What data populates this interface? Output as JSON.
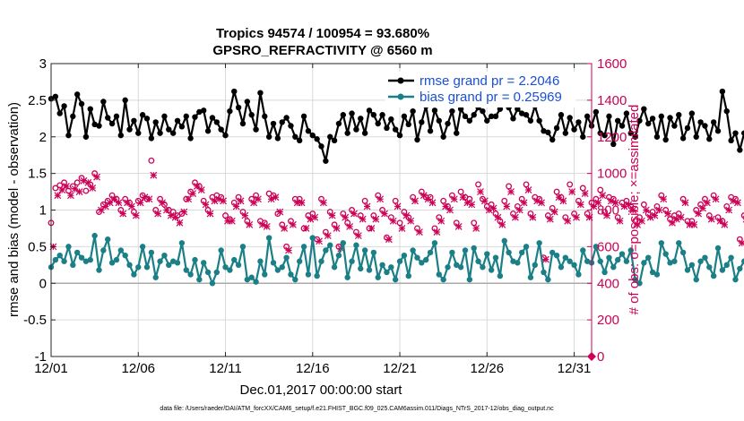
{
  "chart_data": {
    "type": "line",
    "title": "Tropics 94574 / 100954 = 93.680%",
    "subtitle": "GPSRO_REFRACTIVITY @ 6560 m",
    "xlabel": "Dec.01,2017 00:00:00 start",
    "ylabel": "rmse and bias (model - observation)",
    "y2label": "# of obs: o=possible; ×=assimilated",
    "footnote": "data file: /Users/raeder/DAI/ATM_forcXX/CAM6_setup/f.e21.FHIST_BGC.f09_025.CAM6assim.011/Diags_NTrS_2017-12/obs_diag_output.nc",
    "xlim": [
      0,
      31
    ],
    "ylim": [
      -1,
      3
    ],
    "y2lim": [
      0,
      1600
    ],
    "x_ticks": [
      0,
      5,
      10,
      15,
      20,
      25,
      30
    ],
    "x_tick_labels": [
      "12/01",
      "12/06",
      "12/11",
      "12/16",
      "12/21",
      "12/26",
      "12/31"
    ],
    "y_ticks": [
      -1,
      -0.5,
      0,
      0.5,
      1,
      1.5,
      2,
      2.5,
      3
    ],
    "y_tick_labels": [
      "-1",
      "-0.5",
      "0",
      "0.5",
      "1",
      "1.5",
      "2",
      "2.5",
      "3"
    ],
    "y2_ticks": [
      0,
      200,
      400,
      600,
      800,
      1000,
      1200,
      1400,
      1600
    ],
    "y2_tick_labels": [
      "0",
      "200",
      "400",
      "600",
      "800",
      "1000",
      "1200",
      "1400",
      "1600"
    ],
    "grid": true,
    "legend_position": "top-right",
    "colors": {
      "rmse": "#000000",
      "bias": "#1a7f86",
      "obs": "#cc0055",
      "legend_text": "#1a4fd6",
      "grid": "#d9d9d9",
      "zero_line": "#aaaaaa"
    },
    "series": [
      {
        "name": "rmse grand pr = 2.2046",
        "axis": "left",
        "x_start": 0,
        "x_step": 0.25,
        "values": [
          2.52,
          2.55,
          2.32,
          2.42,
          2.02,
          2.28,
          2.58,
          2.45,
          2.0,
          2.38,
          2.17,
          2.15,
          2.48,
          2.26,
          2.18,
          2.28,
          2.02,
          2.5,
          2.1,
          2.22,
          2.05,
          2.3,
          2.25,
          1.98,
          2.2,
          2.05,
          2.28,
          2.1,
          2.05,
          2.22,
          2.14,
          2.28,
          1.98,
          2.27,
          2.34,
          2.36,
          2.08,
          2.26,
          2.2,
          2.1,
          2.02,
          2.35,
          2.62,
          2.4,
          2.18,
          2.48,
          2.3,
          2.1,
          2.6,
          2.28,
          2.0,
          2.18,
          1.98,
          2.2,
          2.26,
          2.15,
          2.0,
          1.95,
          2.28,
          2.08,
          2.02,
          1.97,
          1.87,
          1.67,
          2.0,
          1.95,
          2.18,
          2.3,
          2.05,
          2.32,
          2.1,
          2.25,
          2.05,
          2.36,
          2.3,
          2.18,
          2.3,
          2.12,
          2.24,
          2.1,
          2.02,
          2.28,
          2.17,
          2.35,
          1.96,
          2.2,
          2.42,
          2.08,
          2.36,
          2.22,
          2.0,
          2.18,
          2.35,
          2.05,
          2.38,
          2.28,
          2.22,
          2.3,
          2.4,
          2.35,
          2.22,
          2.28,
          2.28,
          2.38,
          2.62,
          2.4,
          2.25,
          2.38,
          2.32,
          2.3,
          2.22,
          2.42,
          2.22,
          2.08,
          2.06,
          1.96,
          2.12,
          2.3,
          2.05,
          2.26,
          2.1,
          2.2,
          2.0,
          2.28,
          2.15,
          2.34,
          2.05,
          2.02,
          2.28,
          1.9,
          2.22,
          2.15,
          2.32,
          2.05,
          2.0,
          2.22,
          2.38,
          2.18,
          2.25,
          2.0,
          2.28,
          1.96,
          2.26,
          2.15,
          2.3,
          1.98,
          2.12,
          2.32,
          2.0,
          2.2,
          2.15,
          1.97,
          2.2,
          2.08,
          2.62,
          2.35,
          1.95,
          2.05,
          1.82,
          2.05,
          2.12,
          2.22
        ]
      },
      {
        "name": "bias grand pr = 0.25969",
        "axis": "left",
        "x_start": 0,
        "x_step": 0.25,
        "values": [
          0.22,
          0.32,
          0.38,
          0.3,
          0.5,
          0.25,
          0.42,
          0.35,
          0.3,
          0.32,
          0.65,
          0.18,
          0.45,
          0.6,
          0.28,
          0.32,
          0.45,
          0.38,
          0.25,
          0.12,
          0.22,
          0.5,
          0.22,
          0.42,
          0.08,
          0.3,
          0.38,
          0.25,
          0.3,
          0.28,
          0.55,
          0.18,
          0.12,
          0.32,
          0.05,
          0.28,
          0.15,
          0.0,
          0.15,
          0.45,
          0.22,
          0.18,
          0.32,
          0.25,
          0.5,
          0.05,
          0.08,
          0.02,
          0.3,
          0.12,
          0.62,
          0.28,
          0.18,
          0.22,
          0.35,
          0.12,
          0.05,
          0.3,
          0.5,
          0.12,
          0.62,
          0.1,
          0.3,
          0.45,
          0.52,
          0.22,
          0.38,
          0.55,
          0.08,
          0.3,
          0.52,
          0.2,
          0.45,
          0.18,
          0.42,
          0.08,
          0.25,
          0.15,
          0.22,
          0.05,
          0.3,
          0.38,
          0.1,
          0.45,
          0.35,
          0.28,
          0.32,
          0.42,
          0.55,
          0.12,
          0.05,
          0.22,
          0.42,
          0.25,
          0.22,
          0.45,
          0.05,
          0.48,
          0.3,
          0.22,
          0.4,
          0.18,
          0.35,
          0.1,
          0.58,
          0.42,
          0.3,
          0.28,
          0.42,
          0.5,
          0.08,
          0.25,
          0.55,
          0.15,
          0.05,
          0.42,
          0.38,
          0.22,
          0.35,
          0.3,
          0.25,
          0.12,
          0.45,
          0.3,
          0.28,
          0.5,
          0.3,
          0.15,
          0.35,
          0.22,
          0.32,
          0.4,
          0.3,
          0.45,
          0.05,
          0.0,
          0.28,
          0.35,
          0.15,
          0.12,
          0.55,
          0.4,
          0.28,
          0.3,
          0.55,
          0.42,
          0.18,
          0.25,
          0.05,
          0.3,
          0.35,
          0.22,
          0.1,
          0.48,
          0.18,
          0.25,
          0.35,
          0.05,
          0.2,
          0.3,
          0.38,
          0.15,
          0.32
        ]
      },
      {
        "name": "possible obs",
        "axis": "right",
        "marker": "o",
        "x_start": 0,
        "x_step": 0.25,
        "values": [
          730,
          920,
          935,
          950,
          905,
          930,
          950,
          975,
          905,
          940,
          1000,
          790,
          830,
          850,
          880,
          860,
          800,
          860,
          840,
          790,
          850,
          880,
          860,
          1070,
          800,
          860,
          830,
          800,
          790,
          770,
          780,
          860,
          900,
          950,
          930,
          850,
          800,
          870,
          880,
          870,
          770,
          750,
          840,
          870,
          790,
          740,
          860,
          880,
          740,
          730,
          890,
          880,
          780,
          720,
          600,
          740,
          860,
          860,
          700,
          770,
          780,
          640,
          860,
          680,
          790,
          720,
          600,
          780,
          730,
          800,
          680,
          770,
          850,
          700,
          770,
          880,
          800,
          650,
          760,
          850,
          730,
          790,
          760,
          870,
          700,
          900,
          870,
          870,
          700,
          760,
          850,
          820,
          880,
          730,
          900,
          870,
          860,
          730,
          940,
          860,
          820,
          830,
          780,
          740,
          850,
          930,
          780,
          820,
          860,
          940,
          780,
          870,
          860,
          540,
          770,
          810,
          900,
          870,
          760,
          940,
          780,
          850,
          920,
          780,
          840,
          860,
          910,
          790,
          870,
          860,
          760,
          840,
          850,
          820,
          740,
          760,
          830,
          780,
          790,
          820,
          880,
          800,
          750,
          770,
          780,
          860,
          740,
          740,
          800,
          830,
          860,
          770,
          880,
          760,
          740,
          820,
          870,
          860,
          640,
          770,
          900,
          810
        ]
      },
      {
        "name": "assimilated obs",
        "axis": "right",
        "marker": "x",
        "x_start": 0.125,
        "x_step": 0.25,
        "values": [
          600,
          880,
          910,
          930,
          880,
          915,
          900,
          960,
          950,
          920,
          980,
          800,
          820,
          840,
          860,
          840,
          780,
          840,
          820,
          770,
          840,
          870,
          860,
          990,
          780,
          840,
          800,
          770,
          760,
          730,
          790,
          860,
          890,
          930,
          910,
          830,
          780,
          850,
          860,
          850,
          740,
          740,
          820,
          850,
          770,
          720,
          840,
          860,
          720,
          710,
          860,
          870,
          790,
          700,
          580,
          720,
          840,
          840,
          700,
          750,
          760,
          630,
          840,
          660,
          770,
          700,
          590,
          760,
          710,
          780,
          660,
          750,
          820,
          700,
          750,
          860,
          780,
          640,
          740,
          820,
          700,
          770,
          740,
          850,
          680,
          880,
          860,
          840,
          680,
          740,
          820,
          800,
          860,
          710,
          870,
          840,
          830,
          700,
          900,
          850,
          800,
          810,
          760,
          720,
          820,
          900,
          760,
          800,
          840,
          910,
          760,
          850,
          840,
          530,
          750,
          790,
          870,
          850,
          740,
          900,
          760,
          830,
          890,
          760,
          820,
          840,
          880,
          770,
          850,
          840,
          740,
          820,
          830,
          800,
          720,
          740,
          800,
          760,
          770,
          800,
          860,
          780,
          730,
          750,
          760,
          840,
          720,
          720,
          780,
          810,
          840,
          750,
          860,
          740,
          720,
          800,
          850,
          840,
          620,
          750,
          870,
          790
        ]
      }
    ]
  }
}
